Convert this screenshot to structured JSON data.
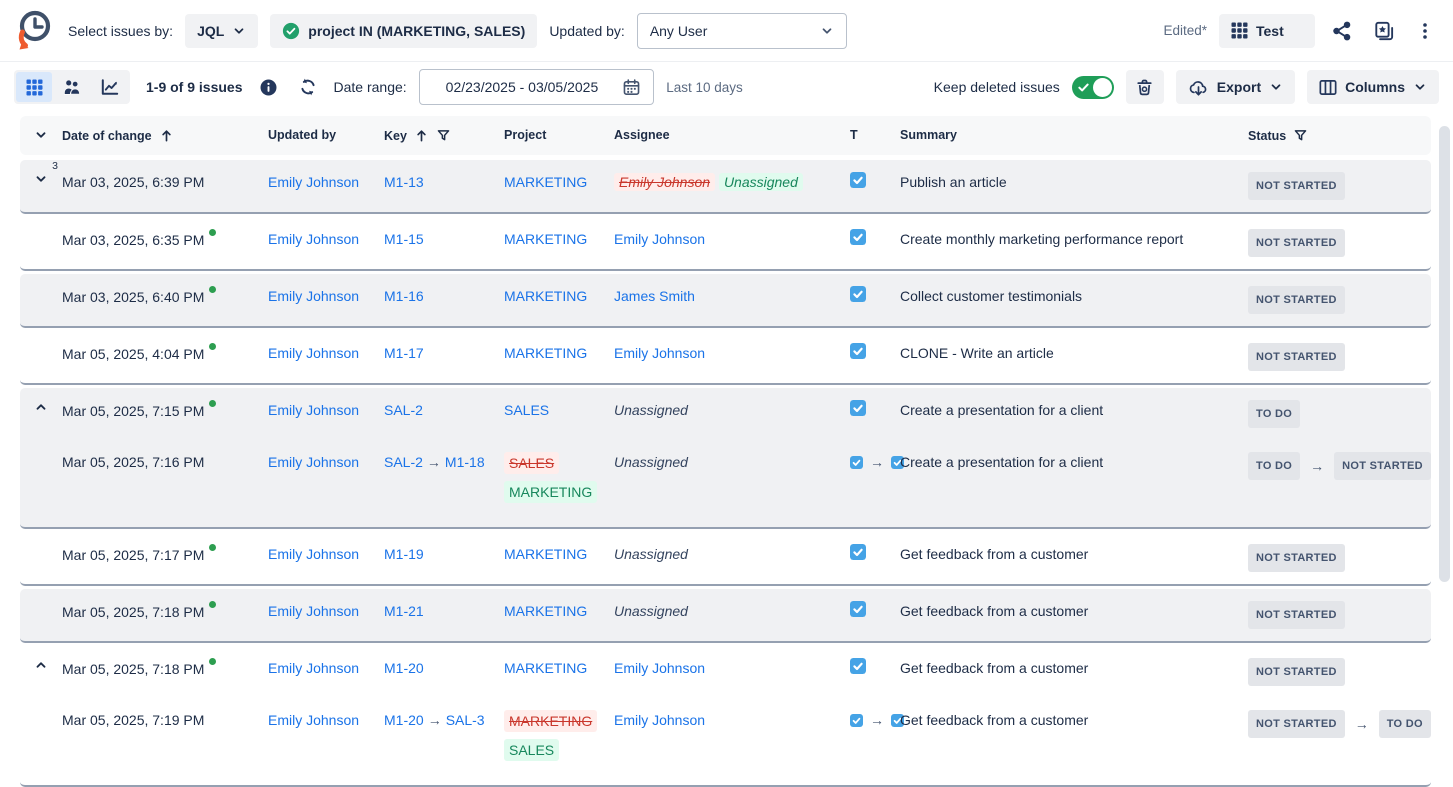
{
  "header": {
    "select_by_label": "Select issues by:",
    "mode_value": "JQL",
    "jql_query": "project IN (MARKETING, SALES)",
    "updated_by_label": "Updated by:",
    "updated_by_value": "Any User",
    "edited_label": "Edited*",
    "view_name": "Test"
  },
  "toolbar": {
    "count": "1-9 of 9 issues",
    "date_range_label": "Date range:",
    "date_range_value": "02/23/2025 - 03/05/2025",
    "last_days": "Last 10 days",
    "keep_deleted_label": "Keep deleted issues",
    "export_label": "Export",
    "columns_label": "Columns"
  },
  "table": {
    "columns": [
      "Date of change",
      "Updated by",
      "Key",
      "Project",
      "Assignee",
      "T",
      "Summary",
      "Status"
    ],
    "groups": [
      {
        "shade": "gray",
        "expand": "collapsed",
        "count": "3",
        "rows": [
          {
            "date": "Mar 03, 2025, 6:39 PM",
            "dot": false,
            "updated_by": "Emily Johnson",
            "key": {
              "value": "M1-13"
            },
            "project": {
              "value": "MARKETING"
            },
            "assignee": {
              "kind": "change",
              "from": "Emily Johnson",
              "to": "Unassigned"
            },
            "type_change": false,
            "summary": "Publish an article",
            "status": {
              "value": "NOT STARTED"
            }
          }
        ]
      },
      {
        "shade": "white",
        "expand": null,
        "count": null,
        "rows": [
          {
            "date": "Mar 03, 2025, 6:35 PM",
            "dot": true,
            "updated_by": "Emily Johnson",
            "key": {
              "value": "M1-15"
            },
            "project": {
              "value": "MARKETING"
            },
            "assignee": {
              "kind": "link",
              "value": "Emily Johnson"
            },
            "type_change": false,
            "summary": "Create monthly marketing performance report",
            "status": {
              "value": "NOT STARTED"
            }
          }
        ]
      },
      {
        "shade": "gray",
        "expand": null,
        "count": null,
        "rows": [
          {
            "date": "Mar 03, 2025, 6:40 PM",
            "dot": true,
            "updated_by": "Emily Johnson",
            "key": {
              "value": "M1-16"
            },
            "project": {
              "value": "MARKETING"
            },
            "assignee": {
              "kind": "link",
              "value": "James Smith"
            },
            "type_change": false,
            "summary": "Collect customer testimonials",
            "status": {
              "value": "NOT STARTED"
            }
          }
        ]
      },
      {
        "shade": "white",
        "expand": null,
        "count": null,
        "rows": [
          {
            "date": "Mar 05, 2025, 4:04 PM",
            "dot": true,
            "updated_by": "Emily Johnson",
            "key": {
              "value": "M1-17"
            },
            "project": {
              "value": "MARKETING"
            },
            "assignee": {
              "kind": "link",
              "value": "Emily Johnson"
            },
            "type_change": false,
            "summary": "CLONE - Write an article",
            "status": {
              "value": "NOT STARTED"
            }
          }
        ]
      },
      {
        "shade": "gray",
        "expand": "expanded",
        "count": null,
        "rows": [
          {
            "date": "Mar 05, 2025, 7:15 PM",
            "dot": true,
            "updated_by": "Emily Johnson",
            "key": {
              "value": "SAL-2"
            },
            "project": {
              "value": "SALES"
            },
            "assignee": {
              "kind": "plain",
              "value": "Unassigned"
            },
            "type_change": false,
            "summary": "Create a presentation for a client",
            "status": {
              "value": "TO DO"
            }
          },
          {
            "date": "Mar 05, 2025, 7:16 PM",
            "dot": false,
            "updated_by": "Emily Johnson",
            "key": {
              "from": "SAL-2",
              "to": "M1-18"
            },
            "project": {
              "from": "SALES",
              "to": "MARKETING"
            },
            "assignee": {
              "kind": "plain",
              "value": "Unassigned"
            },
            "type_change": true,
            "summary": "Create a presentation for a client",
            "status": {
              "from": "TO DO",
              "to": "NOT STARTED"
            }
          }
        ]
      },
      {
        "shade": "white",
        "expand": null,
        "count": null,
        "rows": [
          {
            "date": "Mar 05, 2025, 7:17 PM",
            "dot": true,
            "updated_by": "Emily Johnson",
            "key": {
              "value": "M1-19"
            },
            "project": {
              "value": "MARKETING"
            },
            "assignee": {
              "kind": "plain",
              "value": "Unassigned"
            },
            "type_change": false,
            "summary": "Get feedback from a customer",
            "status": {
              "value": "NOT STARTED"
            }
          }
        ]
      },
      {
        "shade": "gray",
        "expand": null,
        "count": null,
        "rows": [
          {
            "date": "Mar 05, 2025, 7:18 PM",
            "dot": true,
            "updated_by": "Emily Johnson",
            "key": {
              "value": "M1-21"
            },
            "project": {
              "value": "MARKETING"
            },
            "assignee": {
              "kind": "plain",
              "value": "Unassigned"
            },
            "type_change": false,
            "summary": "Get feedback from a customer",
            "status": {
              "value": "NOT STARTED"
            }
          }
        ]
      },
      {
        "shade": "white",
        "expand": "expanded",
        "count": null,
        "rows": [
          {
            "date": "Mar 05, 2025, 7:18 PM",
            "dot": true,
            "updated_by": "Emily Johnson",
            "key": {
              "value": "M1-20"
            },
            "project": {
              "value": "MARKETING"
            },
            "assignee": {
              "kind": "link",
              "value": "Emily Johnson"
            },
            "type_change": false,
            "summary": "Get feedback from a customer",
            "status": {
              "value": "NOT STARTED"
            }
          },
          {
            "date": "Mar 05, 2025, 7:19 PM",
            "dot": false,
            "updated_by": "Emily Johnson",
            "key": {
              "from": "M1-20",
              "to": "SAL-3"
            },
            "project": {
              "from": "MARKETING",
              "to": "SALES"
            },
            "assignee": {
              "kind": "link",
              "value": "Emily Johnson"
            },
            "type_change": true,
            "summary": "Get feedback from a customer",
            "status": {
              "from": "NOT STARTED",
              "to": "TO DO"
            }
          }
        ]
      }
    ]
  },
  "colors": {
    "link_blue": "#1a73e8",
    "task_blue": "#45a3e6",
    "check_green": "#22a06b",
    "toggle_green": "#1f9e58",
    "removed_red": "#c9372c",
    "removed_bg": "#ffedeb",
    "added_green": "#17875c",
    "added_bg": "#e0fbee",
    "badge_bg": "#e3e5e9",
    "badge_text": "#44546f",
    "text_navy": "#1d2c46",
    "logo_orange": "#ee5b2f"
  }
}
